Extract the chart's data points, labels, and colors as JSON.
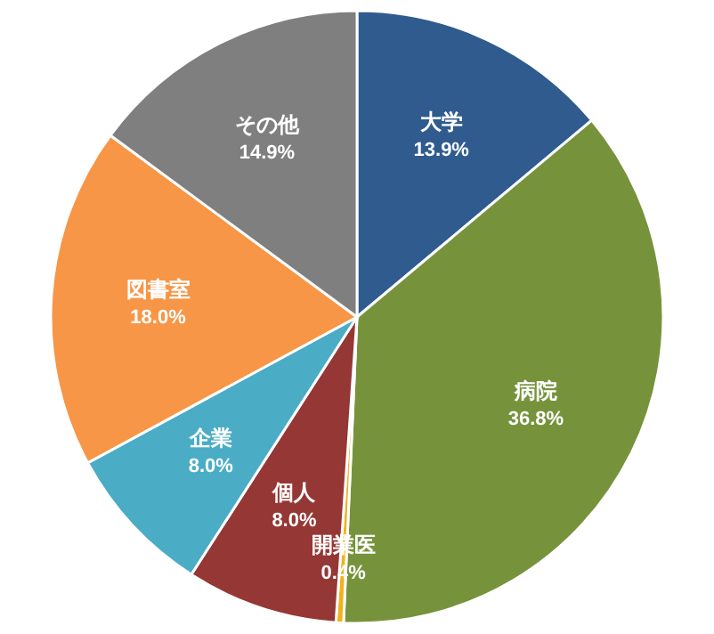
{
  "chart_data": {
    "type": "pie",
    "categories": [
      "大学",
      "病院",
      "開業医",
      "個人",
      "企業",
      "図書室",
      "その他"
    ],
    "values": [
      13.9,
      36.8,
      0.4,
      8.0,
      8.0,
      18.0,
      14.9
    ],
    "colors": [
      "#2f5b8f",
      "#76933c",
      "#f2b21e",
      "#953735",
      "#4bacc6",
      "#f79646",
      "#7f7f7f"
    ],
    "value_labels": [
      "13.9%",
      "36.8%",
      "0.4%",
      "8.0%",
      "8.0%",
      "18.0%",
      "14.9%"
    ]
  }
}
